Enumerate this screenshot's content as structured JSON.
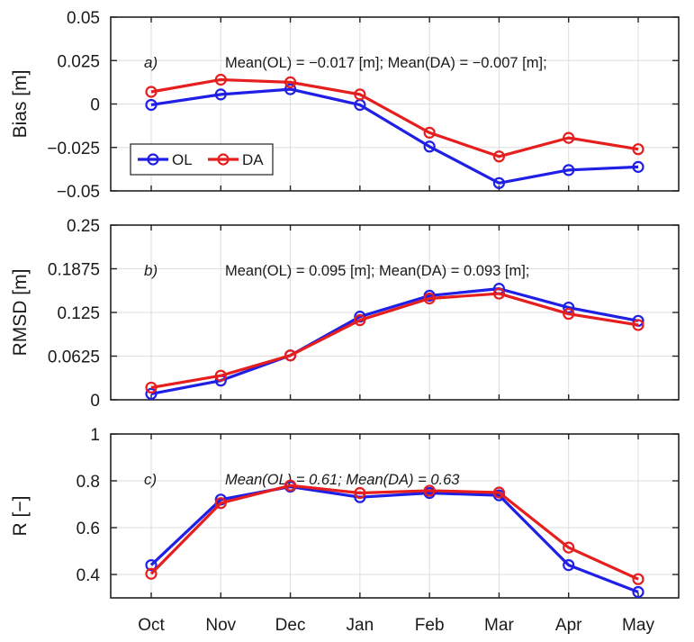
{
  "chart_data": {
    "type": "line",
    "categories": [
      "Oct",
      "Nov",
      "Dec",
      "Jan",
      "Feb",
      "Mar",
      "Apr",
      "May"
    ],
    "colors": {
      "OL": "#1f1fe6",
      "DA": "#e61e1e"
    },
    "legend": {
      "entries": [
        "OL",
        "DA"
      ],
      "placement": "lower-left of panel a"
    },
    "grid": true,
    "panels": [
      {
        "id": "a",
        "label": "a)",
        "ylabel": "Bias [m]",
        "ylim": [
          -0.05,
          0.05
        ],
        "yticks": [
          "0.05",
          "0.025",
          "0",
          "-0.025",
          "-0.05"
        ],
        "ytick_values": [
          0.05,
          0.025,
          0,
          -0.025,
          -0.05
        ],
        "annotation": "Mean(OL) = −0.017 [m]; Mean(DA) = −0.007 [m];",
        "annotation_italic": false,
        "series": [
          {
            "name": "OL",
            "values": [
              -0.0005,
              0.0055,
              0.0085,
              -0.0005,
              -0.0245,
              -0.0455,
              -0.038,
              -0.0362
            ]
          },
          {
            "name": "DA",
            "values": [
              0.007,
              0.014,
              0.0125,
              0.0055,
              -0.0165,
              -0.0302,
              -0.0195,
              -0.026
            ]
          }
        ]
      },
      {
        "id": "b",
        "label": "b)",
        "ylabel": "RMSD [m]",
        "ylim": [
          0,
          0.25
        ],
        "yticks": [
          "0.25",
          "0.1875",
          "0.125",
          "0.0625",
          "0"
        ],
        "ytick_values": [
          0.25,
          0.1875,
          0.125,
          0.0625,
          0
        ],
        "annotation": "Mean(OL) = 0.095 [m]; Mean(DA) = 0.093 [m];",
        "annotation_italic": false,
        "series": [
          {
            "name": "OL",
            "values": [
              0.0085,
              0.0275,
              0.0635,
              0.119,
              0.149,
              0.159,
              0.132,
              0.113
            ]
          },
          {
            "name": "DA",
            "values": [
              0.0175,
              0.0345,
              0.0635,
              0.114,
              0.145,
              0.152,
              0.123,
              0.107
            ]
          }
        ]
      },
      {
        "id": "c",
        "label": "c)",
        "ylabel": "R [−]",
        "ylim": [
          0.3,
          1
        ],
        "yticks": [
          "1",
          "0.8",
          "0.6",
          "0.4"
        ],
        "ytick_values": [
          1,
          0.8,
          0.6,
          0.4
        ],
        "annotation": "Mean(OL) = 0.61;  Mean(DA) = 0.63",
        "annotation_italic": true,
        "series": [
          {
            "name": "OL",
            "values": [
              0.44,
              0.72,
              0.775,
              0.73,
              0.748,
              0.738,
              0.44,
              0.325
            ]
          },
          {
            "name": "DA",
            "values": [
              0.403,
              0.705,
              0.78,
              0.748,
              0.758,
              0.75,
              0.515,
              0.38
            ]
          }
        ]
      }
    ]
  }
}
